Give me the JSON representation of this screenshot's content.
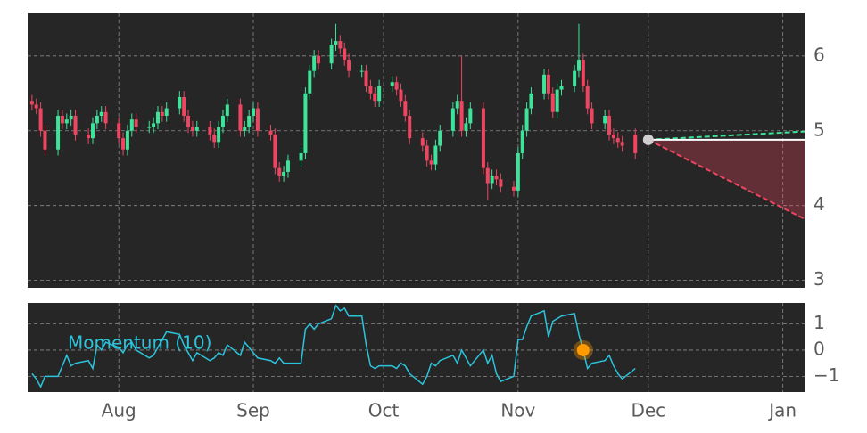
{
  "chart_data": [
    {
      "type": "candlestick",
      "x": [
        1,
        2,
        3,
        4,
        7,
        8,
        9,
        10,
        11,
        14,
        15,
        16,
        17,
        18,
        21,
        22,
        23,
        24,
        25,
        28,
        29,
        30,
        31,
        32,
        35,
        36,
        37,
        38,
        39,
        42,
        43,
        44,
        45,
        46,
        49,
        50,
        51,
        52,
        53,
        56,
        57,
        58,
        59,
        60,
        63,
        64,
        65,
        66,
        67,
        70,
        71,
        72,
        73,
        74,
        77,
        78,
        79,
        80,
        81,
        84,
        85,
        86,
        87,
        88,
        91,
        92,
        93,
        94,
        95,
        98,
        99,
        100,
        101,
        102,
        105,
        106,
        107,
        108,
        109,
        112,
        113,
        114,
        115,
        116,
        119,
        120,
        121,
        122,
        123,
        126,
        127,
        128,
        129,
        130,
        133,
        134,
        135,
        136,
        137,
        140
      ],
      "open": [
        5.4,
        5.35,
        5.3,
        5.0,
        4.75,
        5.2,
        5.1,
        5.15,
        5.2,
        4.95,
        4.9,
        5.1,
        5.2,
        5.25,
        5.1,
        4.9,
        4.75,
        5.0,
        5.15,
        5.05,
        5.05,
        5.1,
        5.25,
        5.2,
        5.3,
        5.45,
        5.2,
        5.05,
        5.0,
        5.05,
        4.95,
        4.85,
        5.05,
        5.2,
        5.35,
        5.0,
        5.05,
        5.2,
        5.3,
        5.0,
        4.95,
        4.5,
        4.4,
        4.45,
        4.6,
        4.7,
        5.5,
        5.8,
        6.0,
        5.9,
        6.15,
        6.2,
        6.1,
        5.95,
        5.8,
        5.8,
        5.6,
        5.5,
        5.4,
        5.6,
        5.65,
        5.55,
        5.4,
        5.2,
        4.9,
        4.8,
        4.6,
        4.55,
        4.8,
        5.0,
        5.3,
        5.4,
        5.0,
        5.1,
        5.3,
        4.5,
        4.3,
        4.4,
        4.35,
        4.25,
        4.2,
        4.7,
        5.0,
        5.3,
        5.5,
        5.75,
        5.5,
        5.25,
        5.55,
        5.6,
        5.8,
        5.95,
        5.6,
        5.3,
        5.1,
        5.2,
        4.95,
        4.9,
        4.85,
        4.95
      ],
      "high": [
        5.48,
        5.43,
        5.38,
        5.08,
        5.28,
        5.28,
        5.23,
        5.28,
        5.28,
        5.03,
        5.18,
        5.28,
        5.33,
        5.33,
        5.18,
        4.98,
        5.08,
        5.23,
        5.23,
        5.13,
        5.18,
        5.33,
        5.33,
        5.38,
        5.53,
        5.53,
        5.28,
        5.13,
        5.13,
        5.13,
        5.03,
        5.13,
        5.28,
        5.43,
        5.43,
        5.13,
        5.28,
        5.38,
        5.38,
        5.08,
        5.03,
        4.58,
        4.53,
        4.68,
        4.78,
        5.58,
        5.88,
        6.08,
        6.08,
        6.23,
        6.43,
        6.28,
        6.18,
        6.03,
        5.88,
        5.88,
        5.68,
        5.58,
        5.68,
        5.73,
        5.73,
        5.63,
        5.48,
        5.28,
        4.98,
        4.88,
        4.68,
        4.88,
        5.08,
        5.38,
        5.48,
        6.0,
        5.18,
        5.38,
        5.38,
        4.58,
        4.48,
        4.48,
        4.43,
        4.33,
        4.78,
        5.08,
        5.38,
        5.58,
        5.83,
        5.83,
        5.58,
        5.63,
        5.68,
        5.88,
        6.43,
        6.03,
        5.68,
        5.38,
        5.28,
        5.28,
        5.03,
        4.98,
        4.93,
        5.03
      ],
      "low": [
        5.27,
        5.22,
        4.92,
        4.67,
        4.67,
        5.02,
        5.02,
        5.07,
        4.87,
        4.82,
        4.82,
        5.02,
        5.12,
        5.02,
        4.82,
        4.67,
        4.67,
        4.92,
        4.97,
        4.97,
        4.97,
        5.02,
        5.12,
        5.12,
        5.22,
        5.12,
        4.97,
        4.92,
        4.92,
        4.87,
        4.77,
        4.77,
        4.97,
        5.12,
        4.92,
        4.92,
        4.97,
        5.12,
        4.92,
        4.87,
        4.42,
        4.32,
        4.32,
        4.37,
        4.52,
        4.62,
        5.42,
        5.72,
        5.82,
        5.82,
        6.07,
        6.02,
        5.87,
        5.72,
        5.72,
        5.52,
        5.42,
        5.32,
        5.32,
        5.52,
        5.47,
        5.32,
        5.12,
        4.82,
        4.72,
        4.52,
        4.47,
        4.47,
        4.72,
        4.92,
        5.22,
        4.92,
        4.92,
        5.02,
        4.42,
        4.08,
        4.22,
        4.27,
        4.17,
        4.12,
        4.12,
        4.62,
        4.92,
        5.22,
        5.42,
        5.42,
        5.17,
        5.17,
        5.47,
        5.52,
        5.72,
        5.52,
        5.22,
        5.02,
        5.02,
        4.87,
        4.82,
        4.77,
        4.72,
        4.62
      ],
      "close": [
        5.35,
        5.3,
        5.0,
        4.75,
        5.2,
        5.1,
        5.15,
        5.2,
        4.95,
        4.9,
        5.1,
        5.2,
        5.25,
        5.1,
        4.9,
        4.75,
        5.0,
        5.15,
        5.05,
        5.05,
        5.1,
        5.25,
        5.2,
        5.3,
        5.45,
        5.2,
        5.05,
        5.0,
        5.05,
        4.95,
        4.85,
        5.05,
        5.2,
        5.35,
        5.0,
        5.05,
        5.2,
        5.3,
        5.0,
        4.95,
        4.5,
        4.4,
        4.45,
        4.6,
        4.7,
        5.5,
        5.8,
        6.0,
        5.9,
        6.15,
        6.2,
        6.1,
        5.95,
        5.8,
        5.8,
        5.6,
        5.5,
        5.4,
        5.6,
        5.65,
        5.55,
        5.4,
        5.2,
        4.9,
        4.8,
        4.6,
        4.55,
        4.8,
        5.0,
        5.3,
        5.4,
        5.0,
        5.1,
        5.3,
        4.5,
        4.3,
        4.4,
        4.35,
        4.25,
        4.2,
        4.7,
        5.0,
        5.3,
        5.5,
        5.75,
        5.5,
        5.25,
        5.55,
        5.6,
        5.8,
        5.95,
        5.6,
        5.3,
        5.1,
        5.2,
        4.95,
        4.9,
        4.85,
        4.8,
        4.7
      ],
      "up_color": "#3ee39a",
      "down_color": "#ee4560",
      "xlim": [
        0,
        179
      ],
      "xticks": [
        {
          "value": 21,
          "label": "Aug"
        },
        {
          "value": 52,
          "label": "Sep"
        },
        {
          "value": 82,
          "label": "Oct"
        },
        {
          "value": 113,
          "label": "Nov"
        },
        {
          "value": 143,
          "label": "Dec"
        },
        {
          "value": 174,
          "label": "Jan"
        }
      ],
      "ylim": [
        2.9,
        6.57
      ],
      "yticks": [
        3,
        4,
        5,
        6
      ],
      "grid": true,
      "forecast": {
        "x": [
          143,
          179
        ],
        "mid": [
          4.88,
          4.88
        ],
        "upper": [
          4.88,
          4.99
        ],
        "lower": [
          4.88,
          3.82
        ],
        "mid_color": "#ffffff",
        "upper_color": "#3ee39a",
        "lower_color": "#ee4560"
      }
    },
    {
      "type": "line",
      "label": "Momentum (10)",
      "color": "#2bc4dc",
      "values": [
        -0.9,
        -1.1,
        -1.4,
        -1.0,
        -1.0,
        -0.6,
        -0.2,
        -0.6,
        -0.5,
        -0.4,
        -0.7,
        0.2,
        0.0,
        0.3,
        0.1,
        -0.1,
        0.2,
        0.3,
        0.0,
        -0.3,
        -0.2,
        0.1,
        0.4,
        0.7,
        0.6,
        0.2,
        -0.1,
        -0.4,
        -0.1,
        -0.4,
        -0.3,
        -0.1,
        -0.2,
        0.2,
        -0.2,
        0.3,
        0.1,
        -0.1,
        -0.3,
        -0.4,
        -0.5,
        -0.3,
        -0.5,
        -0.5,
        -0.5,
        0.8,
        1.0,
        0.8,
        1.0,
        1.2,
        1.7,
        1.5,
        1.6,
        1.3,
        1.3,
        0.2,
        -0.6,
        -0.7,
        -0.6,
        -0.6,
        -0.7,
        -0.5,
        -0.6,
        -0.9,
        -1.3,
        -1.0,
        -0.5,
        -0.6,
        -0.4,
        -0.2,
        -0.5,
        0.0,
        -0.3,
        -0.6,
        0.0,
        -0.5,
        -0.2,
        -0.9,
        -1.2,
        -1.0,
        0.4,
        0.4,
        0.9,
        1.3,
        1.5,
        0.5,
        1.1,
        1.2,
        1.3,
        1.4,
        0.6,
        0.0,
        -0.7,
        -0.5,
        -0.4,
        -0.2,
        -0.6,
        -0.9,
        -1.1,
        -0.7
      ],
      "marker": {
        "x": 128,
        "value": 0,
        "color": "#ff9a00"
      },
      "ylim": [
        -1.6,
        1.8
      ],
      "yticks": [
        1,
        0,
        {
          "value": -1,
          "label": "−1"
        }
      ],
      "grid": true
    }
  ]
}
